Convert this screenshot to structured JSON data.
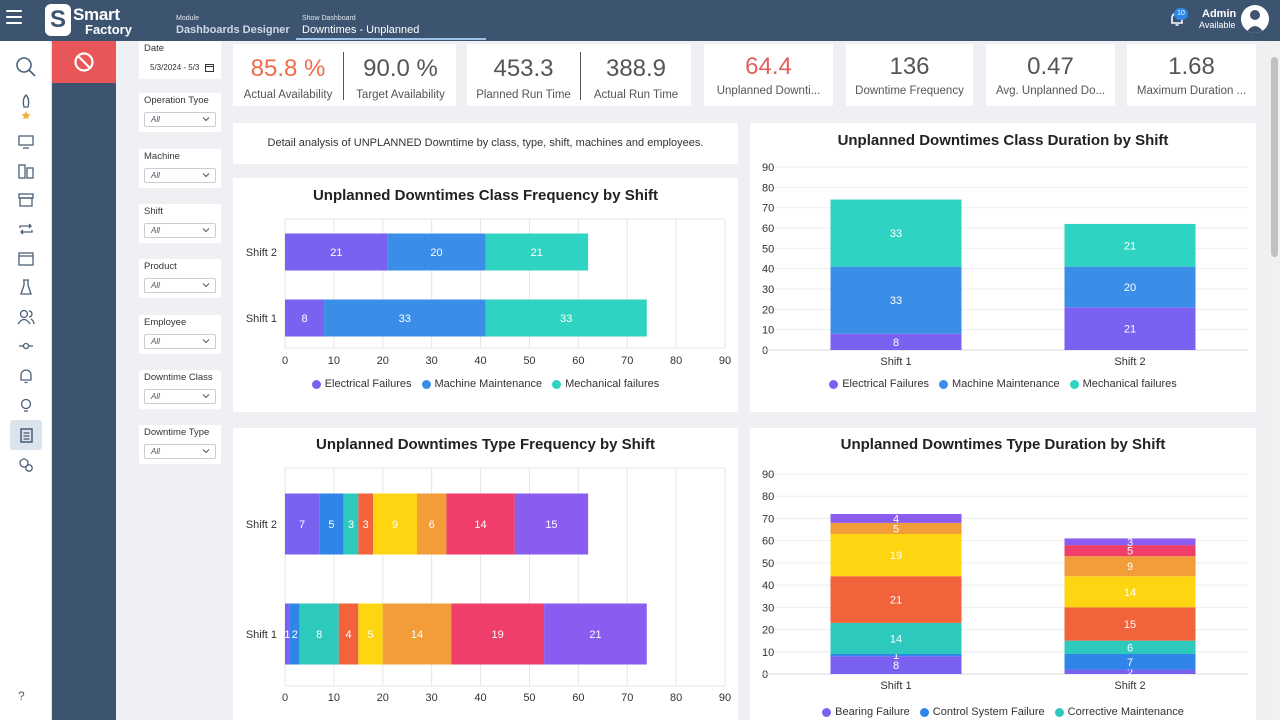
{
  "header": {
    "logo_line1": "Smart",
    "logo_line2": "Factory",
    "logo_mark": "S",
    "module_label": "Module",
    "module_value": "Dashboards Designer",
    "dashboard_label": "Show Dashboard",
    "dashboard_value": "Downtimes - Unplanned",
    "notification_count": "10",
    "user_name": "Admin",
    "user_status": "Available"
  },
  "rail": {
    "items": [
      "search-icon",
      "rocket-icon",
      "monitor-icon",
      "buildings-icon",
      "archive-icon",
      "repeat-icon",
      "calendar-icon",
      "flask-icon",
      "users-icon",
      "commit-icon",
      "bell-icon",
      "bulb-icon",
      "report-icon",
      "gears-icon"
    ],
    "help": "?"
  },
  "filters": [
    {
      "label": "Date",
      "value": "5/3/2024 - 5/3"
    },
    {
      "label": "Operation Tyoe",
      "value": "All"
    },
    {
      "label": "Machine",
      "value": "All"
    },
    {
      "label": "Shift",
      "value": "All"
    },
    {
      "label": "Product",
      "value": "All"
    },
    {
      "label": "Employee",
      "value": "All"
    },
    {
      "label": "Downtime Class",
      "value": "All"
    },
    {
      "label": "Downtime Type",
      "value": "All"
    }
  ],
  "kpis": [
    {
      "value": "85.8 %",
      "label": "Actual Availability",
      "color": "#ef6b4a"
    },
    {
      "value": "90.0 %",
      "label": "Target Availability",
      "color": "#555555"
    },
    {
      "value": "453.3",
      "label": "Planned Run Time",
      "color": "#555555"
    },
    {
      "value": "388.9",
      "label": "Actual Run Time",
      "color": "#555555"
    },
    {
      "value": "64.4",
      "label": "Unplanned Downti...",
      "color": "#e0615b"
    },
    {
      "value": "136",
      "label": "Downtime Frequency",
      "color": "#555555"
    },
    {
      "value": "0.47",
      "label": "Avg. Unplanned Do...",
      "color": "#555555"
    },
    {
      "value": "1.68",
      "label": "Maximum Duration ...",
      "color": "#555555"
    }
  ],
  "description": "Detail analysis of UNPLANNED Downtime by class, type, shift, machines and employees.",
  "colors": {
    "electrical": "#7b61f0",
    "machine_maint": "#3a8ee8",
    "mechanical": "#2fd3c1",
    "ctrl": "#2f86e8",
    "bearing": "#7b61f0",
    "corrective": "#2ec9bd",
    "struct": "#f2623b",
    "yellow": "#fdd511",
    "orange": "#f29c3a",
    "pink": "#ef3e6a",
    "violet": "#8a5cf0"
  },
  "chart_data": [
    {
      "type": "bar",
      "orientation": "horizontal",
      "stacked": true,
      "title": "Unplanned Downtimes Class Frequency by Shift",
      "categories": [
        "Shift 2",
        "Shift 1"
      ],
      "xlim": [
        0,
        90
      ],
      "ticks": [
        "0",
        "10",
        "20",
        "30",
        "40",
        "50",
        "60",
        "70",
        "80",
        "90"
      ],
      "series": [
        {
          "name": "Electrical Failures",
          "color": "#7b61f0",
          "values": [
            21,
            8
          ]
        },
        {
          "name": "Machine Maintenance",
          "color": "#3a8ee8",
          "values": [
            20,
            33
          ]
        },
        {
          "name": "Mechanical failures",
          "color": "#2fd3c1",
          "values": [
            21,
            33
          ]
        }
      ],
      "legend": "bottom"
    },
    {
      "type": "bar",
      "orientation": "vertical",
      "stacked": true,
      "title": "Unplanned Downtimes Class Duration by Shift",
      "categories": [
        "Shift 1",
        "Shift 2"
      ],
      "ylim": [
        0,
        90
      ],
      "ticks": [
        "0",
        "10",
        "20",
        "30",
        "40",
        "50",
        "60",
        "70",
        "80",
        "90"
      ],
      "series": [
        {
          "name": "Electrical Failures",
          "color": "#7b61f0",
          "values": [
            8,
            21
          ]
        },
        {
          "name": "Machine Maintenance",
          "color": "#3a8ee8",
          "values": [
            33,
            20
          ]
        },
        {
          "name": "Mechanical failures",
          "color": "#2fd3c1",
          "values": [
            33,
            21
          ]
        }
      ],
      "legend": "bottom"
    },
    {
      "type": "bar",
      "orientation": "horizontal",
      "stacked": true,
      "title": "Unplanned Downtimes Type Frequency by Shift",
      "categories": [
        "Shift 2",
        "Shift 1"
      ],
      "xlim": [
        0,
        90
      ],
      "ticks": [
        "0",
        "10",
        "20",
        "30",
        "40",
        "50",
        "60",
        "70",
        "80",
        "90"
      ],
      "series": [
        {
          "color": "#7b61f0",
          "values": [
            7,
            1
          ]
        },
        {
          "color": "#2f86e8",
          "values": [
            5,
            2
          ]
        },
        {
          "color": "#2ec9bd",
          "values": [
            3,
            8
          ]
        },
        {
          "color": "#f2623b",
          "values": [
            3,
            4
          ]
        },
        {
          "color": "#fdd511",
          "values": [
            9,
            5
          ]
        },
        {
          "color": "#f29c3a",
          "values": [
            6,
            14
          ]
        },
        {
          "color": "#ef3e6a",
          "values": [
            14,
            19
          ]
        },
        {
          "color": "#8a5cf0",
          "values": [
            15,
            21
          ]
        }
      ],
      "legend": "bottom"
    },
    {
      "type": "bar",
      "orientation": "vertical",
      "stacked": true,
      "title": "Unplanned Downtimes Type Duration by Shift",
      "categories": [
        "Shift 1",
        "Shift 2"
      ],
      "ylim": [
        0,
        90
      ],
      "ticks": [
        "0",
        "10",
        "20",
        "30",
        "40",
        "50",
        "60",
        "70",
        "80",
        "90"
      ],
      "series": [
        {
          "name": "Bearing Failure",
          "color": "#7b61f0",
          "values": [
            8,
            2
          ]
        },
        {
          "name": "Control System Failure",
          "color": "#2f86e8",
          "values": [
            1,
            7
          ]
        },
        {
          "name": "Corrective Maintenance",
          "color": "#2ec9bd",
          "values": [
            14,
            6
          ]
        },
        {
          "color": "#f2623b",
          "values": [
            21,
            15
          ]
        },
        {
          "color": "#fdd511",
          "values": [
            19,
            14
          ]
        },
        {
          "color": "#f29c3a",
          "values": [
            5,
            9
          ]
        },
        {
          "color": "#ef3e6a",
          "values": [
            0,
            5
          ]
        },
        {
          "color": "#8a5cf0",
          "values": [
            4,
            3
          ]
        }
      ],
      "legend": "bottom"
    }
  ]
}
